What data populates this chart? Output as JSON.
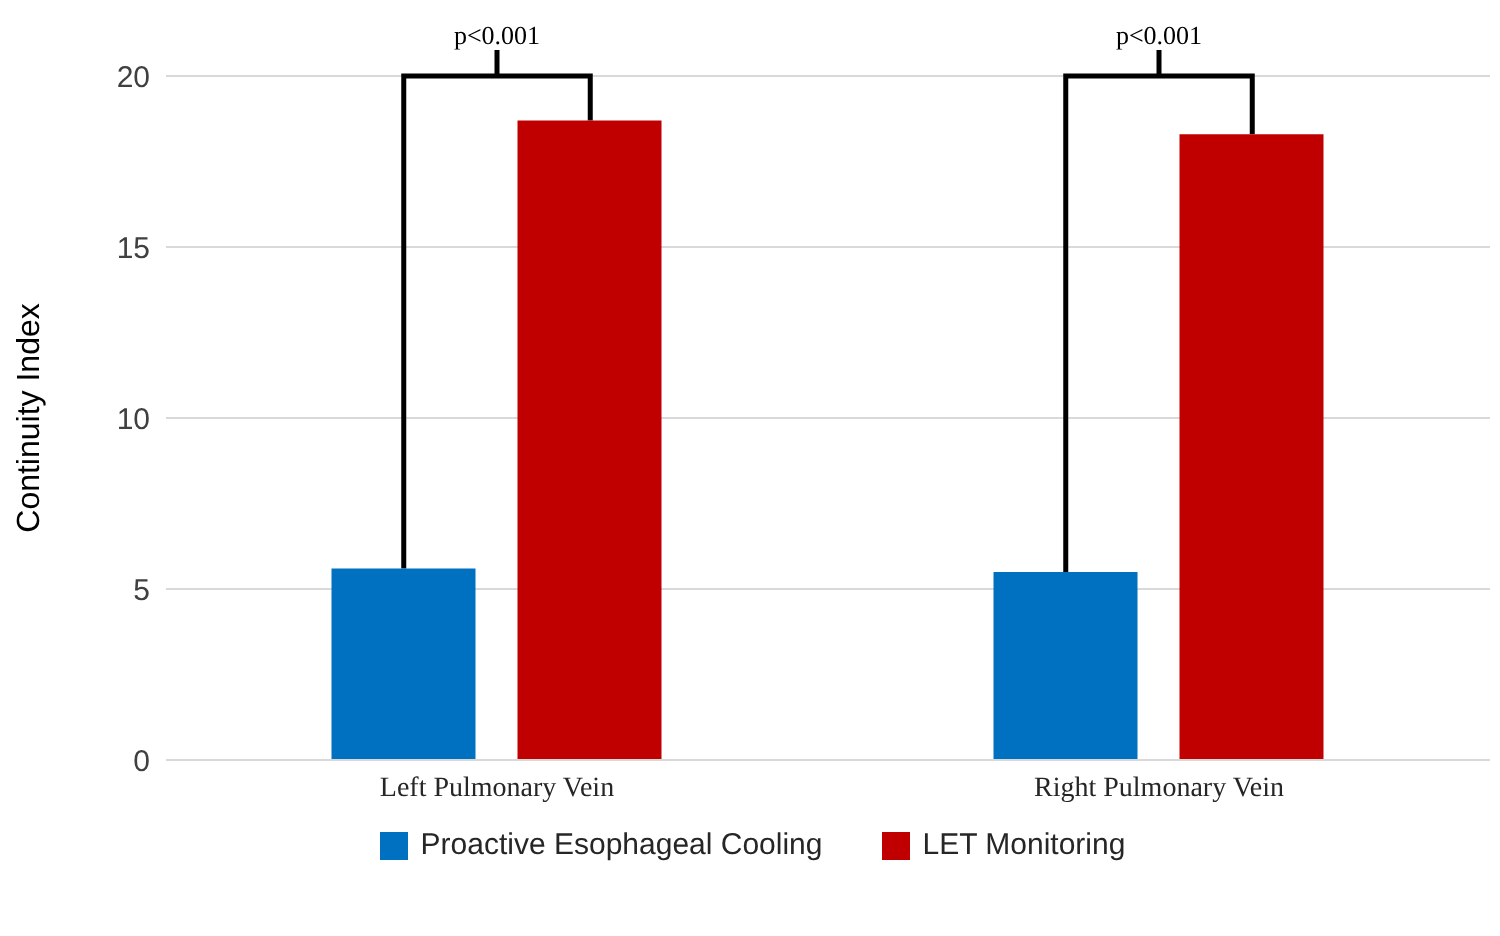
{
  "chart_data": {
    "type": "bar",
    "ylabel": "Continuity Index",
    "categories": [
      "Left Pulmonary Vein",
      "Right Pulmonary Vein"
    ],
    "series": [
      {
        "name": "Proactive Esophageal Cooling",
        "color": "#0070c0",
        "values": [
          5.6,
          5.5
        ]
      },
      {
        "name": "LET Monitoring",
        "color": "#c00000",
        "values": [
          18.7,
          18.3
        ]
      }
    ],
    "ylim": [
      0,
      20
    ],
    "yticks": [
      0,
      5,
      10,
      15,
      20
    ],
    "grid": "y",
    "legend": "bottom",
    "annotations": [
      "p<0.001",
      "p<0.001"
    ]
  }
}
